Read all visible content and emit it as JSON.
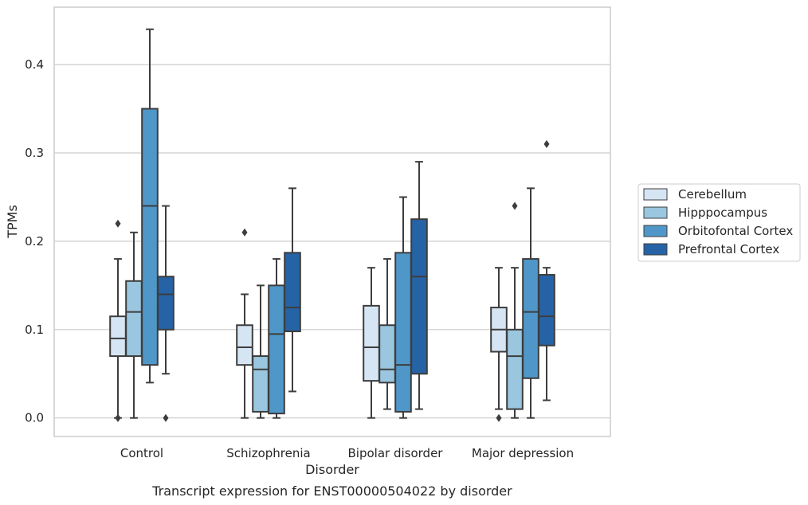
{
  "chart_data": {
    "type": "box",
    "xlabel": "Disorder",
    "ylabel": "TPMs",
    "caption": "Transcript expression for ENST00000504022 by disorder",
    "ylim": [
      -0.021,
      0.465
    ],
    "yticks": [
      0.0,
      0.1,
      0.2,
      0.3,
      0.4
    ],
    "ytick_labels": [
      "0.0",
      "0.1",
      "0.2",
      "0.3",
      "0.4"
    ],
    "grid": "horizontal",
    "legend_position": "right",
    "categories": [
      "Control",
      "Schizophrenia",
      "Bipolar disorder",
      "Major depression"
    ],
    "series": [
      {
        "name": "Cerebellum",
        "color": "#d6e5f4",
        "boxes": [
          {
            "whisker_low": 0.0,
            "q1": 0.07,
            "median": 0.09,
            "q3": 0.115,
            "whisker_high": 0.18,
            "outliers": [
              0.22,
              0.0,
              0.0
            ]
          },
          {
            "whisker_low": 0.0,
            "q1": 0.06,
            "median": 0.08,
            "q3": 0.105,
            "whisker_high": 0.14,
            "outliers": [
              0.21
            ]
          },
          {
            "whisker_low": 0.0,
            "q1": 0.042,
            "median": 0.08,
            "q3": 0.127,
            "whisker_high": 0.17,
            "outliers": []
          },
          {
            "whisker_low": 0.01,
            "q1": 0.075,
            "median": 0.1,
            "q3": 0.125,
            "whisker_high": 0.17,
            "outliers": [
              0.0
            ]
          }
        ]
      },
      {
        "name": "Hipppocampus",
        "color": "#9ac6df",
        "boxes": [
          {
            "whisker_low": 0.0,
            "q1": 0.07,
            "median": 0.12,
            "q3": 0.155,
            "whisker_high": 0.21,
            "outliers": []
          },
          {
            "whisker_low": 0.0,
            "q1": 0.007,
            "median": 0.055,
            "q3": 0.07,
            "whisker_high": 0.15,
            "outliers": []
          },
          {
            "whisker_low": 0.01,
            "q1": 0.04,
            "median": 0.055,
            "q3": 0.105,
            "whisker_high": 0.18,
            "outliers": []
          },
          {
            "whisker_low": 0.0,
            "q1": 0.01,
            "median": 0.07,
            "q3": 0.1,
            "whisker_high": 0.17,
            "outliers": [
              0.24
            ]
          }
        ]
      },
      {
        "name": "Orbitofontal Cortex",
        "color": "#5097c9",
        "boxes": [
          {
            "whisker_low": 0.04,
            "q1": 0.06,
            "median": 0.24,
            "q3": 0.35,
            "whisker_high": 0.44,
            "outliers": []
          },
          {
            "whisker_low": 0.0,
            "q1": 0.005,
            "median": 0.095,
            "q3": 0.15,
            "whisker_high": 0.18,
            "outliers": []
          },
          {
            "whisker_low": 0.0,
            "q1": 0.007,
            "median": 0.06,
            "q3": 0.187,
            "whisker_high": 0.25,
            "outliers": []
          },
          {
            "whisker_low": 0.0,
            "q1": 0.045,
            "median": 0.12,
            "q3": 0.18,
            "whisker_high": 0.26,
            "outliers": []
          }
        ]
      },
      {
        "name": "Prefrontal Cortex",
        "color": "#2663a6",
        "boxes": [
          {
            "whisker_low": 0.05,
            "q1": 0.1,
            "median": 0.14,
            "q3": 0.16,
            "whisker_high": 0.24,
            "outliers": [
              0.0
            ]
          },
          {
            "whisker_low": 0.03,
            "q1": 0.098,
            "median": 0.125,
            "q3": 0.187,
            "whisker_high": 0.26,
            "outliers": []
          },
          {
            "whisker_low": 0.01,
            "q1": 0.05,
            "median": 0.16,
            "q3": 0.225,
            "whisker_high": 0.29,
            "outliers": []
          },
          {
            "whisker_low": 0.02,
            "q1": 0.082,
            "median": 0.115,
            "q3": 0.162,
            "whisker_high": 0.17,
            "outliers": [
              0.31
            ]
          }
        ]
      }
    ]
  }
}
